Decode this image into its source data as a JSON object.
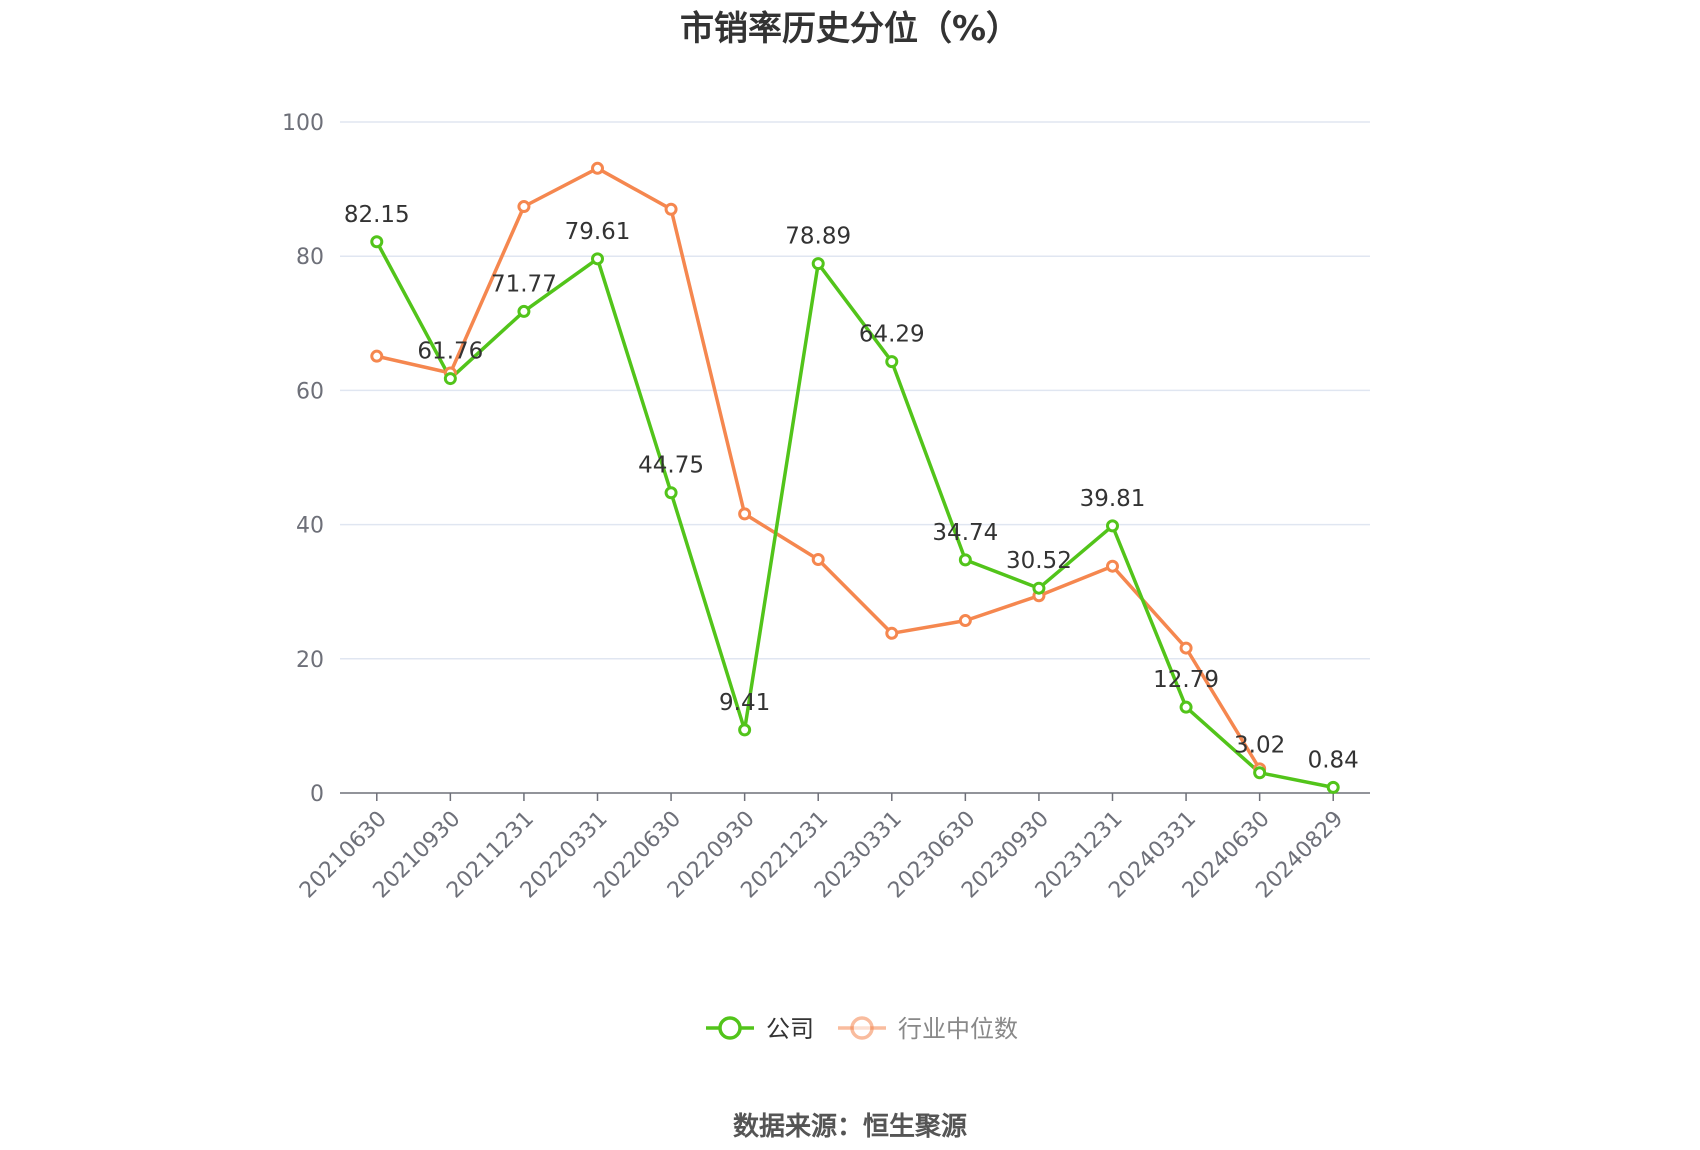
{
  "title": "市销率历史分位（%）",
  "source_text": "数据来源：恒生聚源",
  "chart_data": {
    "type": "line",
    "title": "市销率历史分位（%）",
    "xlabel": "",
    "ylabel": "",
    "ylim": [
      0,
      100
    ],
    "yticks": [
      0,
      20,
      40,
      60,
      80,
      100
    ],
    "grid": true,
    "legend_position": "bottom-center",
    "categories": [
      "20210630",
      "20210930",
      "20211231",
      "20220331",
      "20220630",
      "20220930",
      "20221231",
      "20230331",
      "20230630",
      "20230930",
      "20231231",
      "20240331",
      "20240630",
      "20240829"
    ],
    "series": [
      {
        "name": "公司",
        "color": "#52c41a",
        "show_labels": true,
        "values": [
          82.15,
          61.76,
          71.77,
          79.61,
          44.75,
          9.41,
          78.89,
          64.29,
          34.74,
          30.52,
          39.81,
          12.79,
          3.02,
          0.84
        ]
      },
      {
        "name": "行业中位数",
        "color": "#f5874f",
        "show_labels": false,
        "values": [
          65.1,
          62.6,
          87.4,
          93.1,
          87.0,
          41.6,
          34.8,
          23.8,
          25.7,
          29.4,
          33.8,
          21.6,
          3.6,
          null
        ]
      }
    ]
  }
}
